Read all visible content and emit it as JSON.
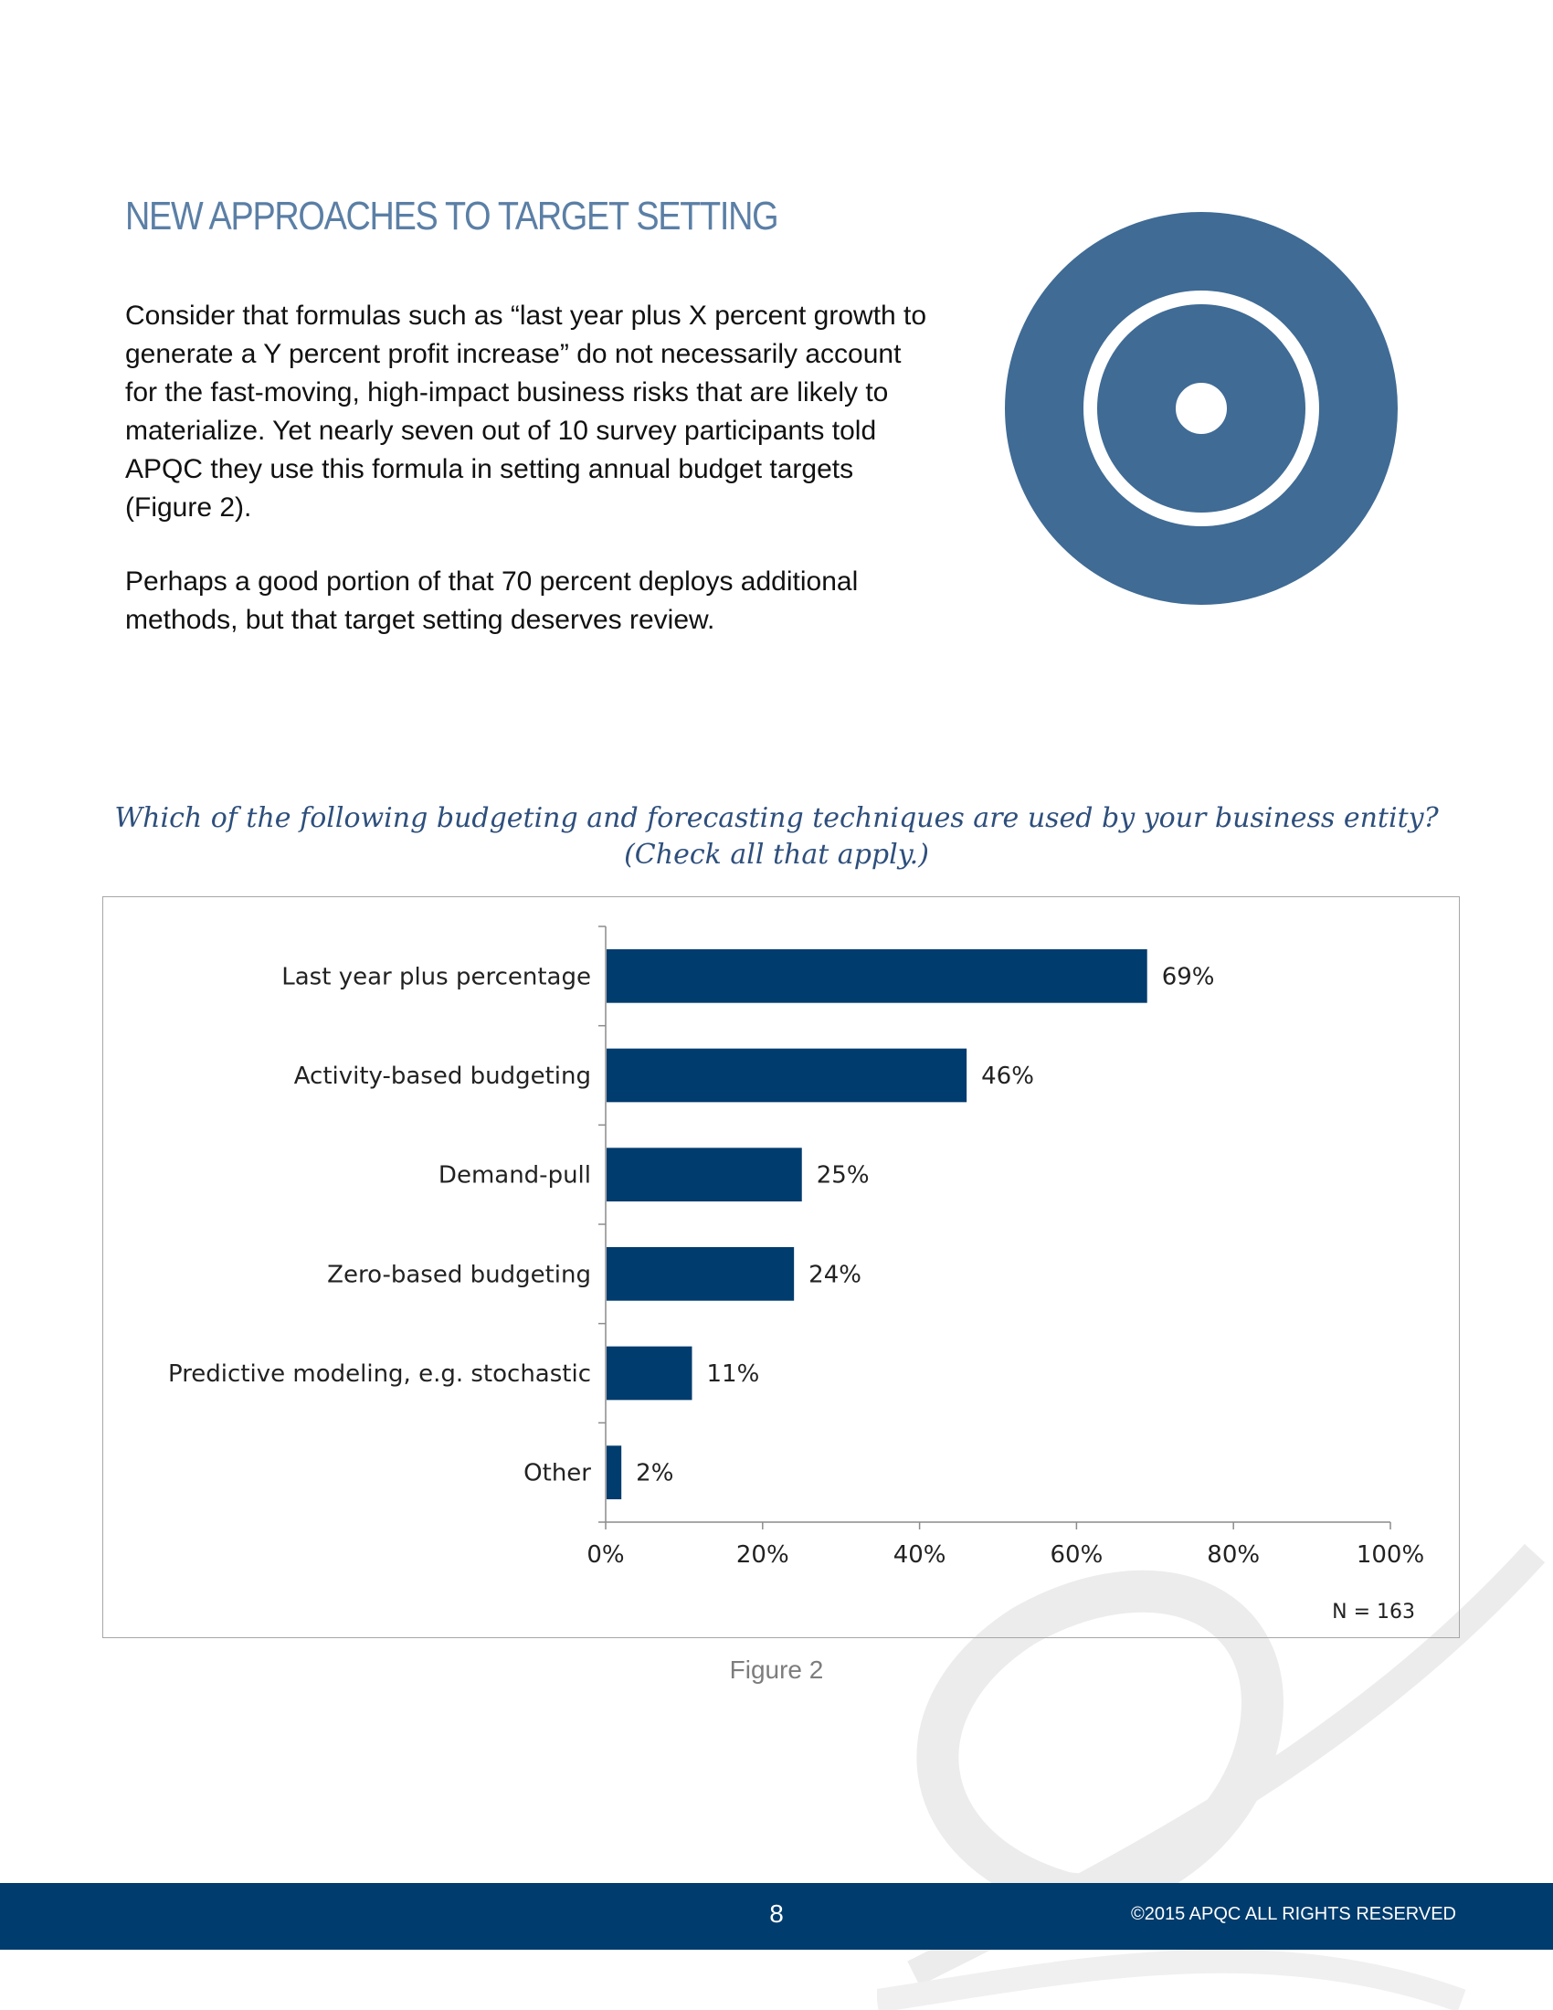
{
  "heading": "NEW APPROACHES TO TARGET SETTING",
  "paragraphs": [
    "Consider that formulas such as “last year plus X percent growth to generate a Y percent profit increase” do not necessarily account for the fast-moving, high-impact business risks that are likely to materialize. Yet nearly seven out of 10 survey participants told APQC they use this formula in setting annual budget targets (Figure 2).",
    "Perhaps a good portion of that 70 percent deploys additional methods, but that target setting deserves review."
  ],
  "question": {
    "line1": "Which of the following budgeting and forecasting techniques are used by your business entity?",
    "line2": "(Check all that apply.)"
  },
  "chart_data": {
    "type": "bar",
    "orientation": "horizontal",
    "categories": [
      "Last year plus percentage",
      "Activity-based budgeting",
      "Demand-pull",
      "Zero-based budgeting",
      "Predictive modeling, e.g. stochastic",
      "Other"
    ],
    "values": [
      69,
      46,
      25,
      24,
      11,
      2
    ],
    "data_labels": [
      "69%",
      "46%",
      "25%",
      "24%",
      "11%",
      "2%"
    ],
    "xlim": [
      0,
      100
    ],
    "x_ticks": [
      0,
      20,
      40,
      60,
      80,
      100
    ],
    "x_tick_labels": [
      "0%",
      "20%",
      "40%",
      "60%",
      "80%",
      "100%"
    ],
    "sample_note": "N = 163",
    "bar_color": "#003c6e",
    "grid": false,
    "legend": "none"
  },
  "caption": "Figure 2",
  "footer": {
    "page_number": "8",
    "copyright": "©2015 APQC ALL RIGHTS RESERVED"
  },
  "colors": {
    "heading": "#5b7fa6",
    "target": "#3f6b95",
    "question": "#2e4f7c",
    "footer": "#003c6e"
  },
  "icons": {
    "target": "target-icon",
    "watermark": "apqc-watermark-icon"
  }
}
